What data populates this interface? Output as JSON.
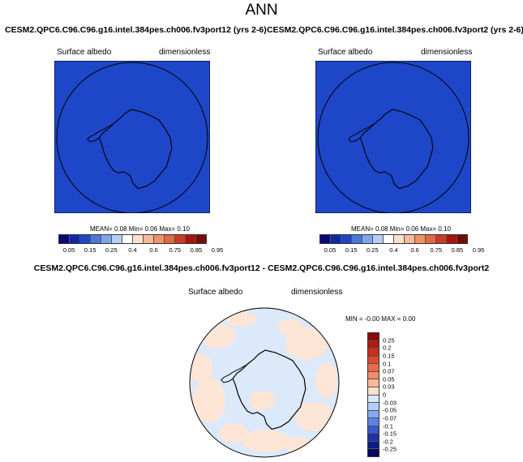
{
  "page_title": "ANN",
  "panels": [
    {
      "case_title": "CESM2.QPC6.C96.C96.g16.intel.384pes.ch006.fv3port12 (yrs 2-6)",
      "variable": "Surface albedo",
      "units": "dimensionless",
      "stats": "MEAN=  0.08  Min=  0.06  Max=  0.10",
      "fill_color": "#1e46c8"
    },
    {
      "case_title": "CESM2.QPC6.C96.C96.g16.intel.384pes.ch006.fv3port2 (yrs 2-6)",
      "variable": "Surface albedo",
      "units": "dimensionless",
      "stats": "MEAN=  0.08  Min=  0.06  Max=  0.10",
      "fill_color": "#1e46c8"
    }
  ],
  "abs_colorbar": {
    "colors": [
      "#08087a",
      "#0c2aa8",
      "#1e46c8",
      "#4a78dc",
      "#7ea4ec",
      "#b4cff6",
      "#ffffff",
      "#fde0cf",
      "#f8b89a",
      "#f29068",
      "#e46642",
      "#cc3a24",
      "#a8140e",
      "#780a06"
    ],
    "ticks": [
      "0.05",
      "0.15",
      "0.25",
      "0.4",
      "0.6",
      "0.75",
      "0.85",
      "0.95"
    ]
  },
  "diff_panel": {
    "title": "CESM2.QPC6.C96.C96.g16.intel.384pes.ch006.fv3port12 - CESM2.QPC6.C96.C96.g16.intel.384pes.ch006.fv3port2",
    "variable": "Surface albedo",
    "units": "dimensionless",
    "stats": "MIN =  -0.00  MAX =  0.00",
    "base_color": "#dbe9fb",
    "patch_color": "#fde6d6"
  },
  "diff_colorbar": {
    "colors": [
      "#8c0a0a",
      "#b01a12",
      "#cc2e1e",
      "#de4a30",
      "#ea6a48",
      "#f28e6a",
      "#f8b89a",
      "#fde0cf",
      "#dbe9fb",
      "#b4cff6",
      "#86aaee",
      "#5a82e0",
      "#3658c8",
      "#1c34a8",
      "#0c1c86",
      "#080a60"
    ],
    "ticks": [
      "0.25",
      "0.2",
      "0.15",
      "0.1",
      "0.07",
      "0.05",
      "0.03",
      "0",
      "-0.03",
      "-0.05",
      "-0.07",
      "-0.1",
      "-0.15",
      "-0.2",
      "-0.25"
    ]
  }
}
